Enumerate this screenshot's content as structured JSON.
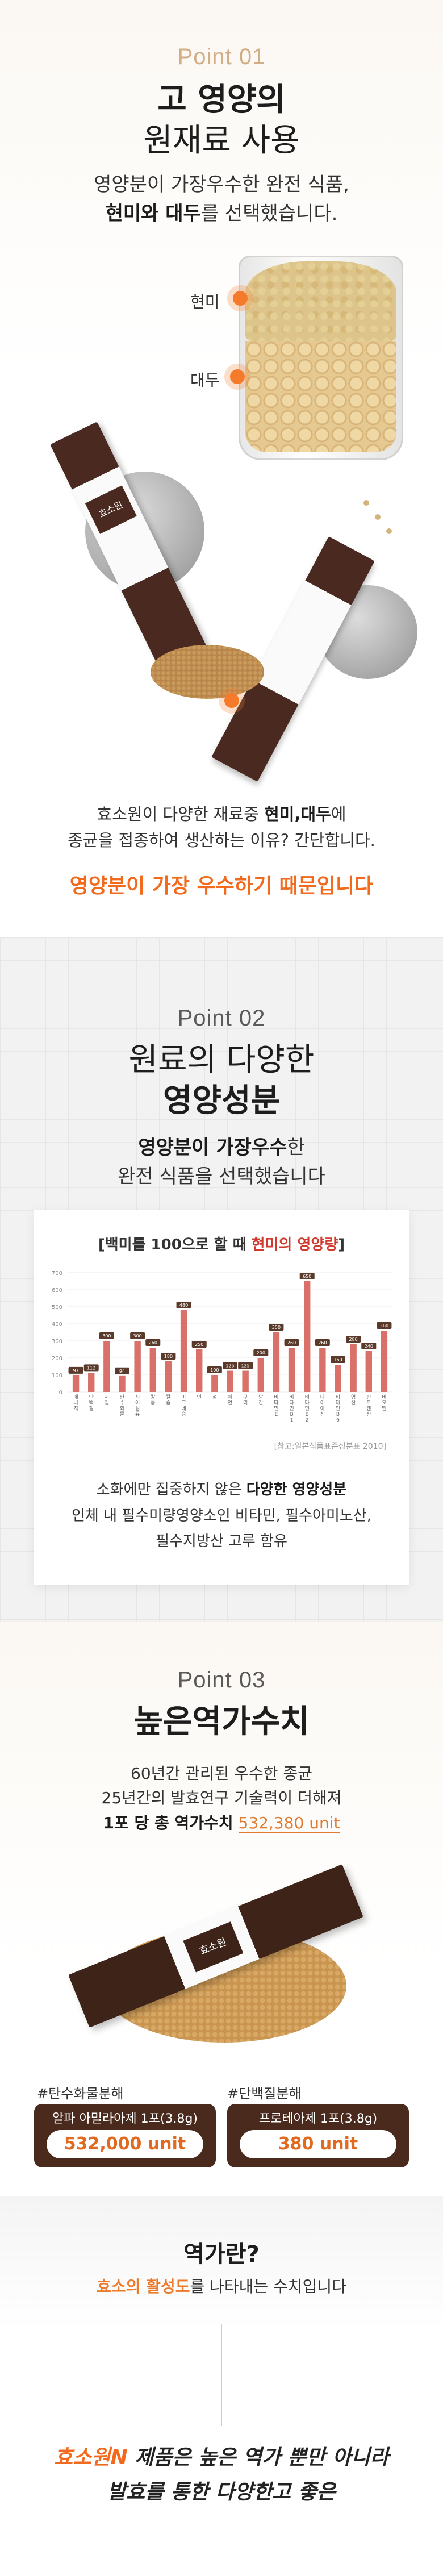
{
  "point1": {
    "label": "Point 01",
    "headline_1": "고 영양의",
    "headline_2": "원재료 사용",
    "desc_line1": "영양분이 가장우수한 완전 식품,",
    "desc_bold": "현미와 대두",
    "desc_rest": "를 선택했습니다.",
    "label_rice": "현미",
    "label_soy": "대두",
    "bottom_line1_a": "효소원이 다양한 재료중 ",
    "bottom_line1_b": "현미,대두",
    "bottom_line1_c": "에",
    "bottom_line2": "종균을 접종하여 생산하는 이유? 간단합니다.",
    "accent": "영양분이 가장 우수하기  때문입니다",
    "stick_brand": "효소원"
  },
  "point2": {
    "label": "Point 02",
    "headline_1": "원료의 다양한",
    "headline_2": "영양성분",
    "desc_bold": "영양분이 가장우수",
    "desc_rest": "한",
    "desc_line2": "완전 식품을 선택했습니다",
    "caption_line1_a": "소화에만 집중하지 않은 ",
    "caption_line1_b": "다양한 영양성분",
    "caption_line2": "인체 내 필수미량영양소인 비타민, 필수아미노산,",
    "caption_line3": "필수지방산 고루 함유"
  },
  "chart_data": {
    "type": "bar",
    "title_a": "[백미를 100으로 할 때 ",
    "title_b": "현미의 영양량",
    "title_c": "]",
    "source": "[참고:일본식품표준성분표 2010]",
    "ylim": [
      0,
      700
    ],
    "yticks": [
      "700",
      "600",
      "500",
      "400",
      "300",
      "200",
      "100",
      "0"
    ],
    "categories": [
      "에너지",
      "단백질",
      "지질",
      "탄수화물",
      "식이섬유",
      "칼륨",
      "칼슘",
      "마그네슘",
      "인",
      "철",
      "아연",
      "구리",
      "망간",
      "비타민E",
      "비타민B1",
      "비타민B2",
      "나이아신",
      "비타민B6",
      "엽산",
      "판토텐산",
      "비오틴"
    ],
    "values": [
      97,
      112,
      300,
      94,
      300,
      260,
      180,
      480,
      250,
      100,
      125,
      125,
      200,
      350,
      260,
      650,
      260,
      160,
      280,
      240,
      360
    ],
    "labels": [
      "97",
      "112",
      "300",
      "94",
      "300",
      "260",
      "180",
      "480",
      "250",
      "100",
      "125",
      "125",
      "200",
      "350",
      "260",
      "650",
      "260",
      "160",
      "280",
      "240",
      "360"
    ],
    "bar_color": "#d9716a",
    "label_color": "#5a3a2a",
    "grid": true
  },
  "point3": {
    "label": "Point 03",
    "headline": "높은역가수치",
    "desc_line1": "60년간 관리된 우수한 종균",
    "desc_line2": "25년간의 발효연구 기술력이 더해져",
    "desc_line3_bold": "1포 당 총 역가수치",
    "desc_line3_value": "532,380 unit",
    "tag_left": "#탄수화물분해",
    "tag_right": "#단백질분해",
    "pill_left_sub": "알파 아밀라아제 1포(3.8g)",
    "pill_left_value": "532,000 unit",
    "pill_right_sub": "프로테아제 1포(3.8g)",
    "pill_right_value": "380 unit",
    "stick_brand": "효소원"
  },
  "point4": {
    "question": "역가란?",
    "answer_hl": "효소의 활성도",
    "answer_rest": "를 나타내는 수치입니다",
    "final_hl": "효소원N",
    "final_line1_rest": " 제품은 높은 역가 뿐만 아니라",
    "final_line2": "발효를 통한 다양한고 좋은"
  },
  "colors": {
    "accent_orange": "#f26a1e",
    "point_gold": "#d3ad86",
    "brown": "#4a2a1d"
  }
}
